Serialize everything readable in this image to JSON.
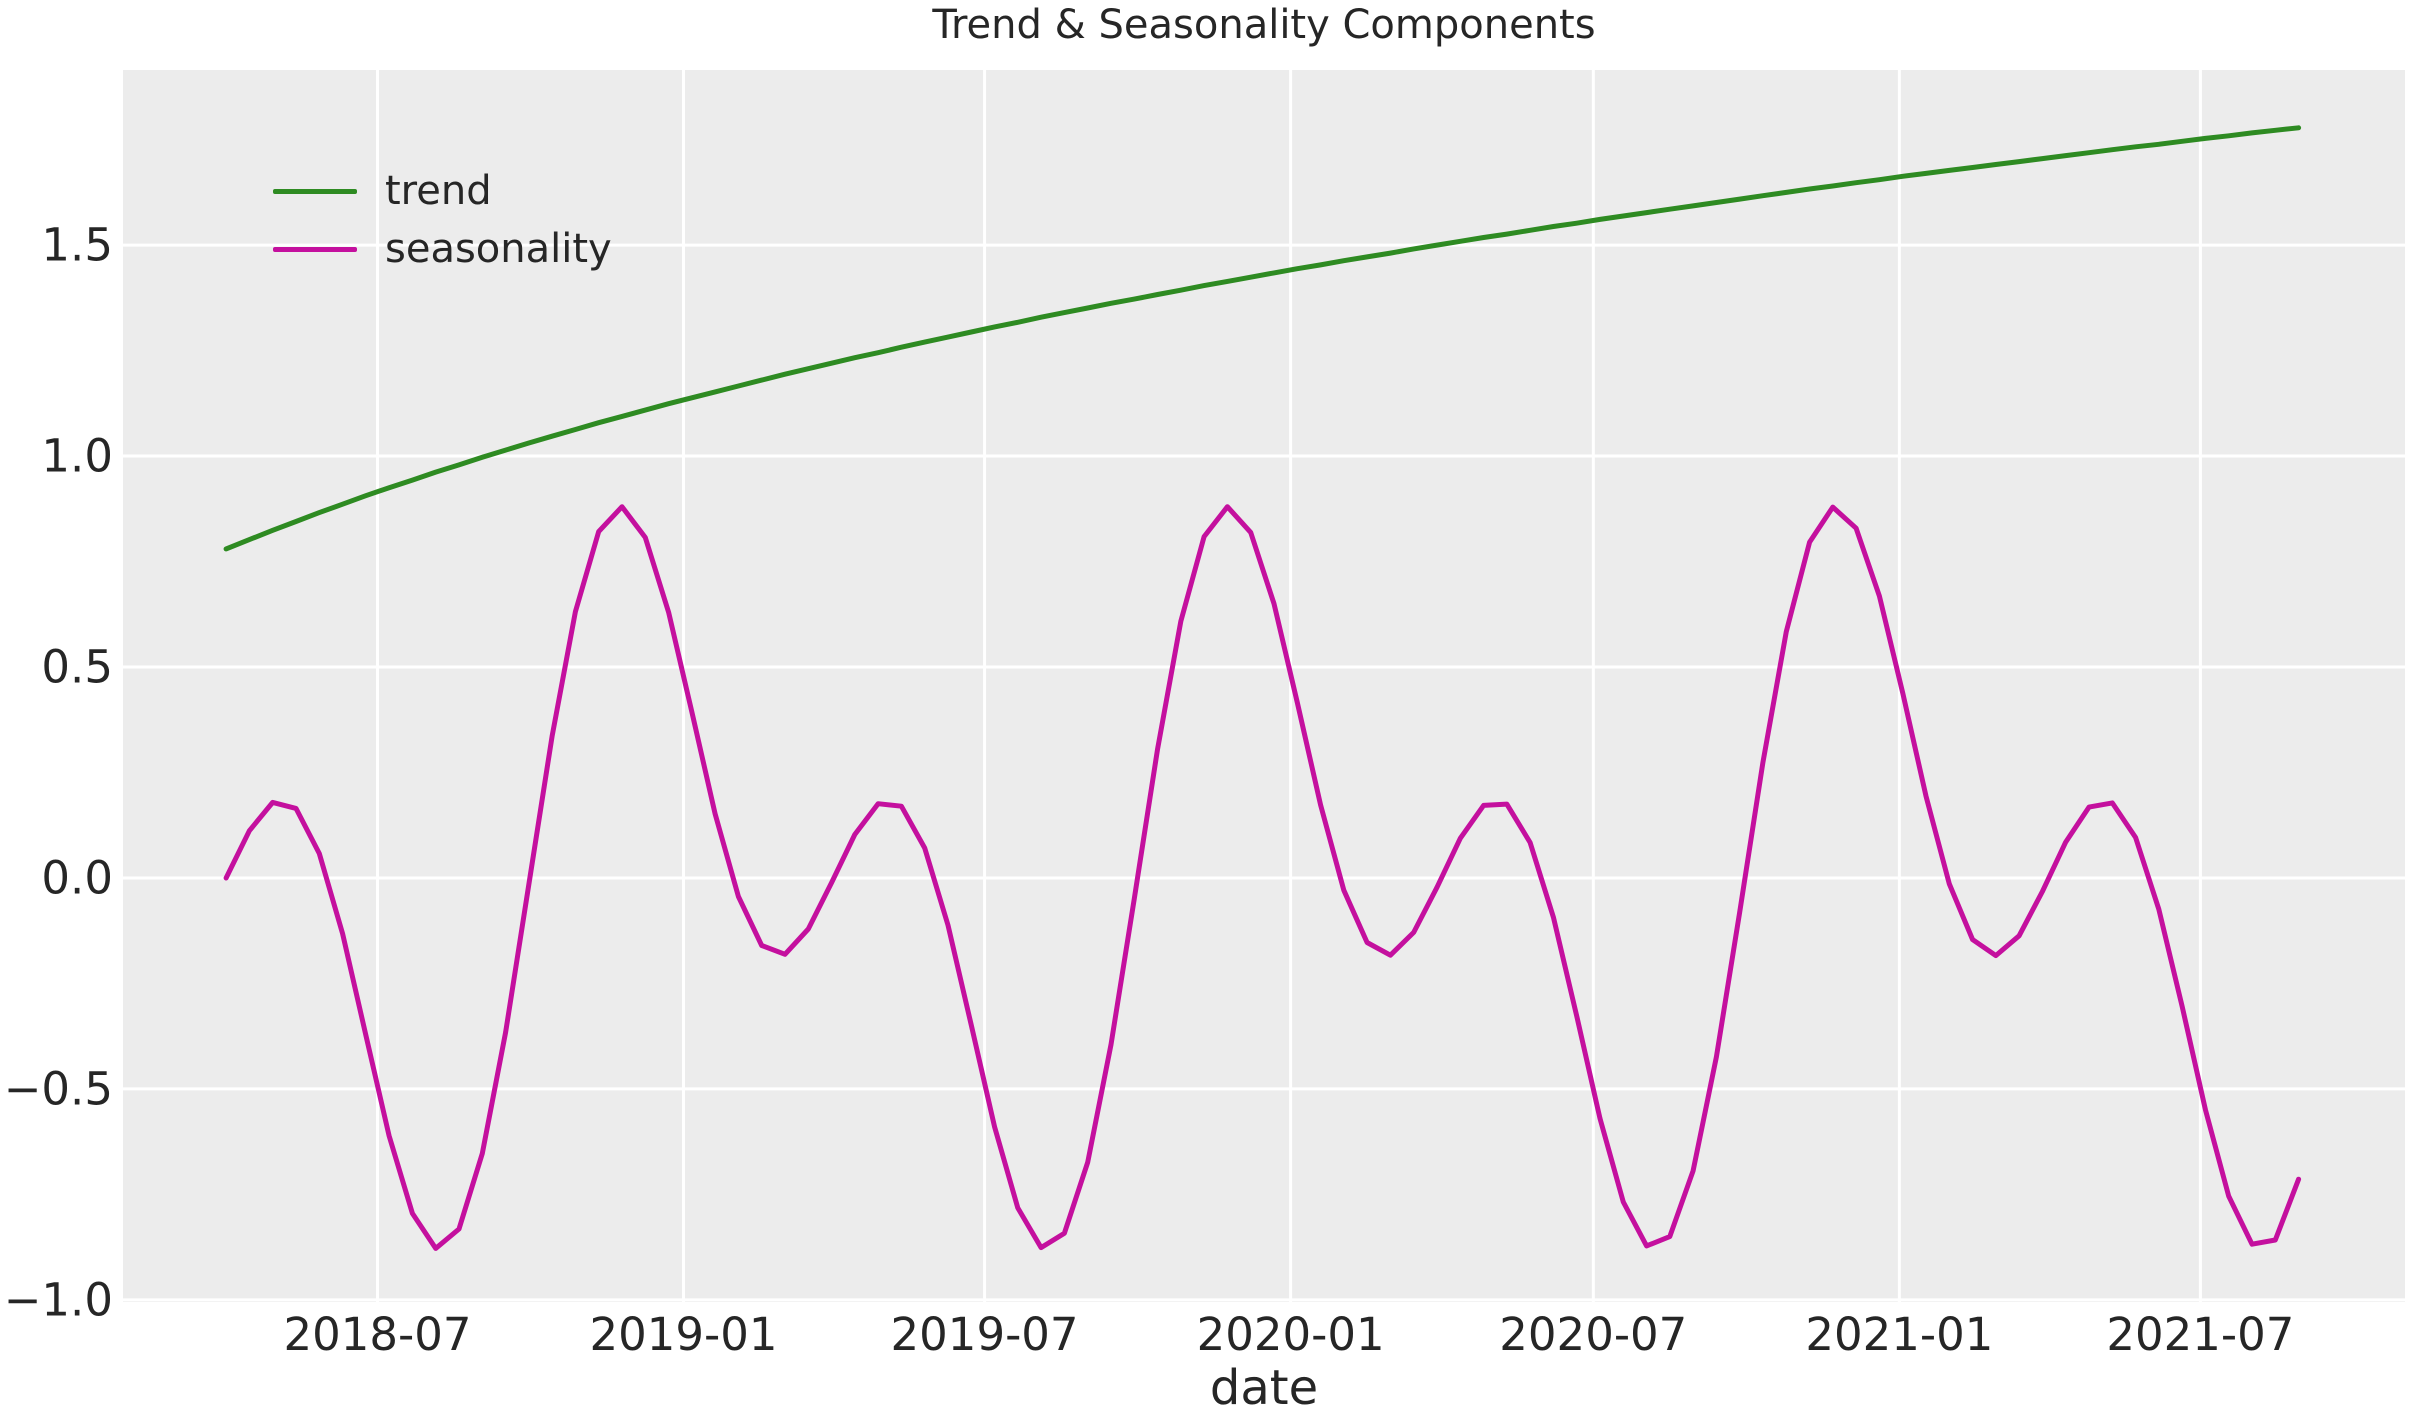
{
  "title": "Trend & Seasonality Components",
  "x_axis_label": "date",
  "legend": [
    {
      "label": "trend",
      "color": "#2E8B22"
    },
    {
      "label": "seasonality",
      "color": "#C4109E"
    }
  ],
  "colors": {
    "plot_background": "#ECECEC",
    "grid": "#FFFFFF",
    "text": "#262626",
    "trend_line": "#2E8B22",
    "seasonality_line": "#C4109E"
  },
  "chart_data": {
    "type": "line",
    "title": "Trend & Seasonality Components",
    "xlabel": "date",
    "ylabel": "",
    "grid": true,
    "legend_position": "upper left",
    "x_start_date": "2018-04-01",
    "x_interval_days": 14,
    "dates": [
      "2018-04-01",
      "2018-04-15",
      "2018-04-29",
      "2018-05-13",
      "2018-05-27",
      "2018-06-10",
      "2018-06-24",
      "2018-07-08",
      "2018-07-22",
      "2018-08-05",
      "2018-08-19",
      "2018-09-02",
      "2018-09-16",
      "2018-09-30",
      "2018-10-14",
      "2018-10-28",
      "2018-11-11",
      "2018-11-25",
      "2018-12-09",
      "2018-12-23",
      "2019-01-06",
      "2019-01-20",
      "2019-02-03",
      "2019-02-17",
      "2019-03-03",
      "2019-03-17",
      "2019-03-31",
      "2019-04-14",
      "2019-04-28",
      "2019-05-12",
      "2019-05-26",
      "2019-06-09",
      "2019-06-23",
      "2019-07-07",
      "2019-07-21",
      "2019-08-04",
      "2019-08-18",
      "2019-09-01",
      "2019-09-15",
      "2019-09-29",
      "2019-10-13",
      "2019-10-27",
      "2019-11-10",
      "2019-11-24",
      "2019-12-08",
      "2019-12-22",
      "2020-01-05",
      "2020-01-19",
      "2020-02-02",
      "2020-02-16",
      "2020-03-01",
      "2020-03-15",
      "2020-03-29",
      "2020-04-12",
      "2020-04-26",
      "2020-05-10",
      "2020-05-24",
      "2020-06-07",
      "2020-06-21",
      "2020-07-05",
      "2020-07-19",
      "2020-08-02",
      "2020-08-16",
      "2020-08-30",
      "2020-09-13",
      "2020-09-27",
      "2020-10-11",
      "2020-10-25",
      "2020-11-08",
      "2020-11-22",
      "2020-12-06",
      "2020-12-20",
      "2021-01-03",
      "2021-01-17",
      "2021-01-31",
      "2021-02-14",
      "2021-02-28",
      "2021-03-14",
      "2021-03-28",
      "2021-04-11",
      "2021-04-25",
      "2021-05-09",
      "2021-05-23",
      "2021-06-06",
      "2021-06-20",
      "2021-07-04",
      "2021-07-18",
      "2021-08-01",
      "2021-08-15",
      "2021-08-29"
    ],
    "series": [
      {
        "name": "trend",
        "color": "#2E8B22",
        "values": [
          0.78,
          0.802,
          0.824,
          0.845,
          0.866,
          0.886,
          0.906,
          0.925,
          0.943,
          0.962,
          0.979,
          0.997,
          1.014,
          1.031,
          1.047,
          1.063,
          1.079,
          1.094,
          1.109,
          1.124,
          1.138,
          1.152,
          1.166,
          1.18,
          1.194,
          1.207,
          1.22,
          1.233,
          1.245,
          1.258,
          1.27,
          1.282,
          1.294,
          1.306,
          1.317,
          1.329,
          1.34,
          1.351,
          1.362,
          1.372,
          1.383,
          1.393,
          1.404,
          1.414,
          1.424,
          1.434,
          1.444,
          1.453,
          1.463,
          1.472,
          1.481,
          1.491,
          1.5,
          1.509,
          1.518,
          1.526,
          1.535,
          1.544,
          1.552,
          1.561,
          1.569,
          1.577,
          1.585,
          1.593,
          1.601,
          1.609,
          1.617,
          1.625,
          1.633,
          1.64,
          1.648,
          1.655,
          1.663,
          1.67,
          1.677,
          1.684,
          1.691,
          1.698,
          1.705,
          1.712,
          1.719,
          1.726,
          1.733,
          1.739,
          1.746,
          1.753,
          1.759,
          1.766,
          1.772,
          1.778
        ]
      },
      {
        "name": "seasonality",
        "color": "#C4109E",
        "values": [
          0.0,
          0.112,
          0.179,
          0.165,
          0.058,
          -0.132,
          -0.372,
          -0.611,
          -0.795,
          -0.878,
          -0.832,
          -0.653,
          -0.366,
          -0.016,
          0.336,
          0.631,
          0.821,
          0.88,
          0.807,
          0.63,
          0.394,
          0.152,
          -0.044,
          -0.16,
          -0.181,
          -0.121,
          -0.011,
          0.103,
          0.176,
          0.17,
          0.071,
          -0.112,
          -0.349,
          -0.59,
          -0.782,
          -0.876,
          -0.842,
          -0.674,
          -0.395,
          -0.049,
          0.306,
          0.608,
          0.809,
          0.88,
          0.819,
          0.65,
          0.416,
          0.173,
          -0.029,
          -0.153,
          -0.183,
          -0.129,
          -0.022,
          0.094,
          0.172,
          0.175,
          0.084,
          -0.093,
          -0.327,
          -0.57,
          -0.768,
          -0.872,
          -0.85,
          -0.694,
          -0.424,
          -0.081,
          0.275,
          0.584,
          0.796,
          0.879,
          0.829,
          0.668,
          0.439,
          0.194,
          -0.014,
          -0.146,
          -0.184,
          -0.137,
          -0.032,
          0.085,
          0.168,
          0.178,
          0.096,
          -0.074,
          -0.304,
          -0.549,
          -0.754,
          -0.868,
          -0.858,
          -0.714
        ]
      }
    ],
    "x_ticks": [
      {
        "label": "2018-07",
        "day": 91
      },
      {
        "label": "2019-01",
        "day": 275
      },
      {
        "label": "2019-07",
        "day": 456
      },
      {
        "label": "2020-01",
        "day": 640
      },
      {
        "label": "2020-07",
        "day": 822
      },
      {
        "label": "2021-01",
        "day": 1006
      },
      {
        "label": "2021-07",
        "day": 1187
      }
    ],
    "y_ticks": [
      -1.0,
      -0.5,
      0.0,
      0.5,
      1.0,
      1.5
    ],
    "y_tick_labels": [
      "−1.0",
      "−0.5",
      "0.0",
      "0.5",
      "1.0",
      "1.5"
    ],
    "xlim_days": [
      -62,
      1310
    ],
    "ylim": [
      -1.005,
      1.915
    ]
  }
}
